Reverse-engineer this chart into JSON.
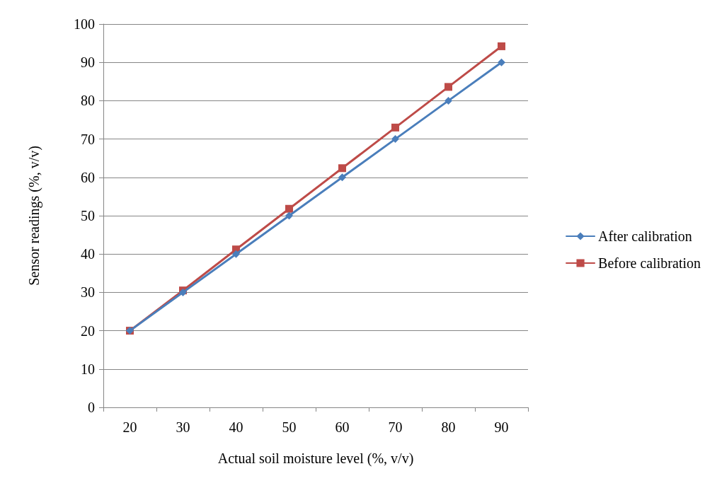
{
  "chart_data": {
    "type": "line",
    "xlabel": "Actual soil moisture level (%, v/v)",
    "ylabel": "Sensor readings (%, v/v)",
    "categories": [
      "20",
      "30",
      "40",
      "50",
      "60",
      "70",
      "80",
      "90"
    ],
    "series": [
      {
        "name": "After calibration",
        "color": "#4a7ebb",
        "marker": "diamond",
        "values": [
          20,
          30,
          40,
          50,
          60,
          70,
          80,
          90
        ]
      },
      {
        "name": "Before calibration",
        "color": "#be4b48",
        "marker": "square",
        "values": [
          20,
          30.5,
          41.2,
          51.8,
          62.4,
          73,
          83.6,
          94.2
        ]
      }
    ],
    "ylim": [
      0,
      100
    ],
    "yticks": [
      0,
      10,
      20,
      30,
      40,
      50,
      60,
      70,
      80,
      90,
      100
    ],
    "grid": "y",
    "legend": "right",
    "line_style": "solid"
  }
}
